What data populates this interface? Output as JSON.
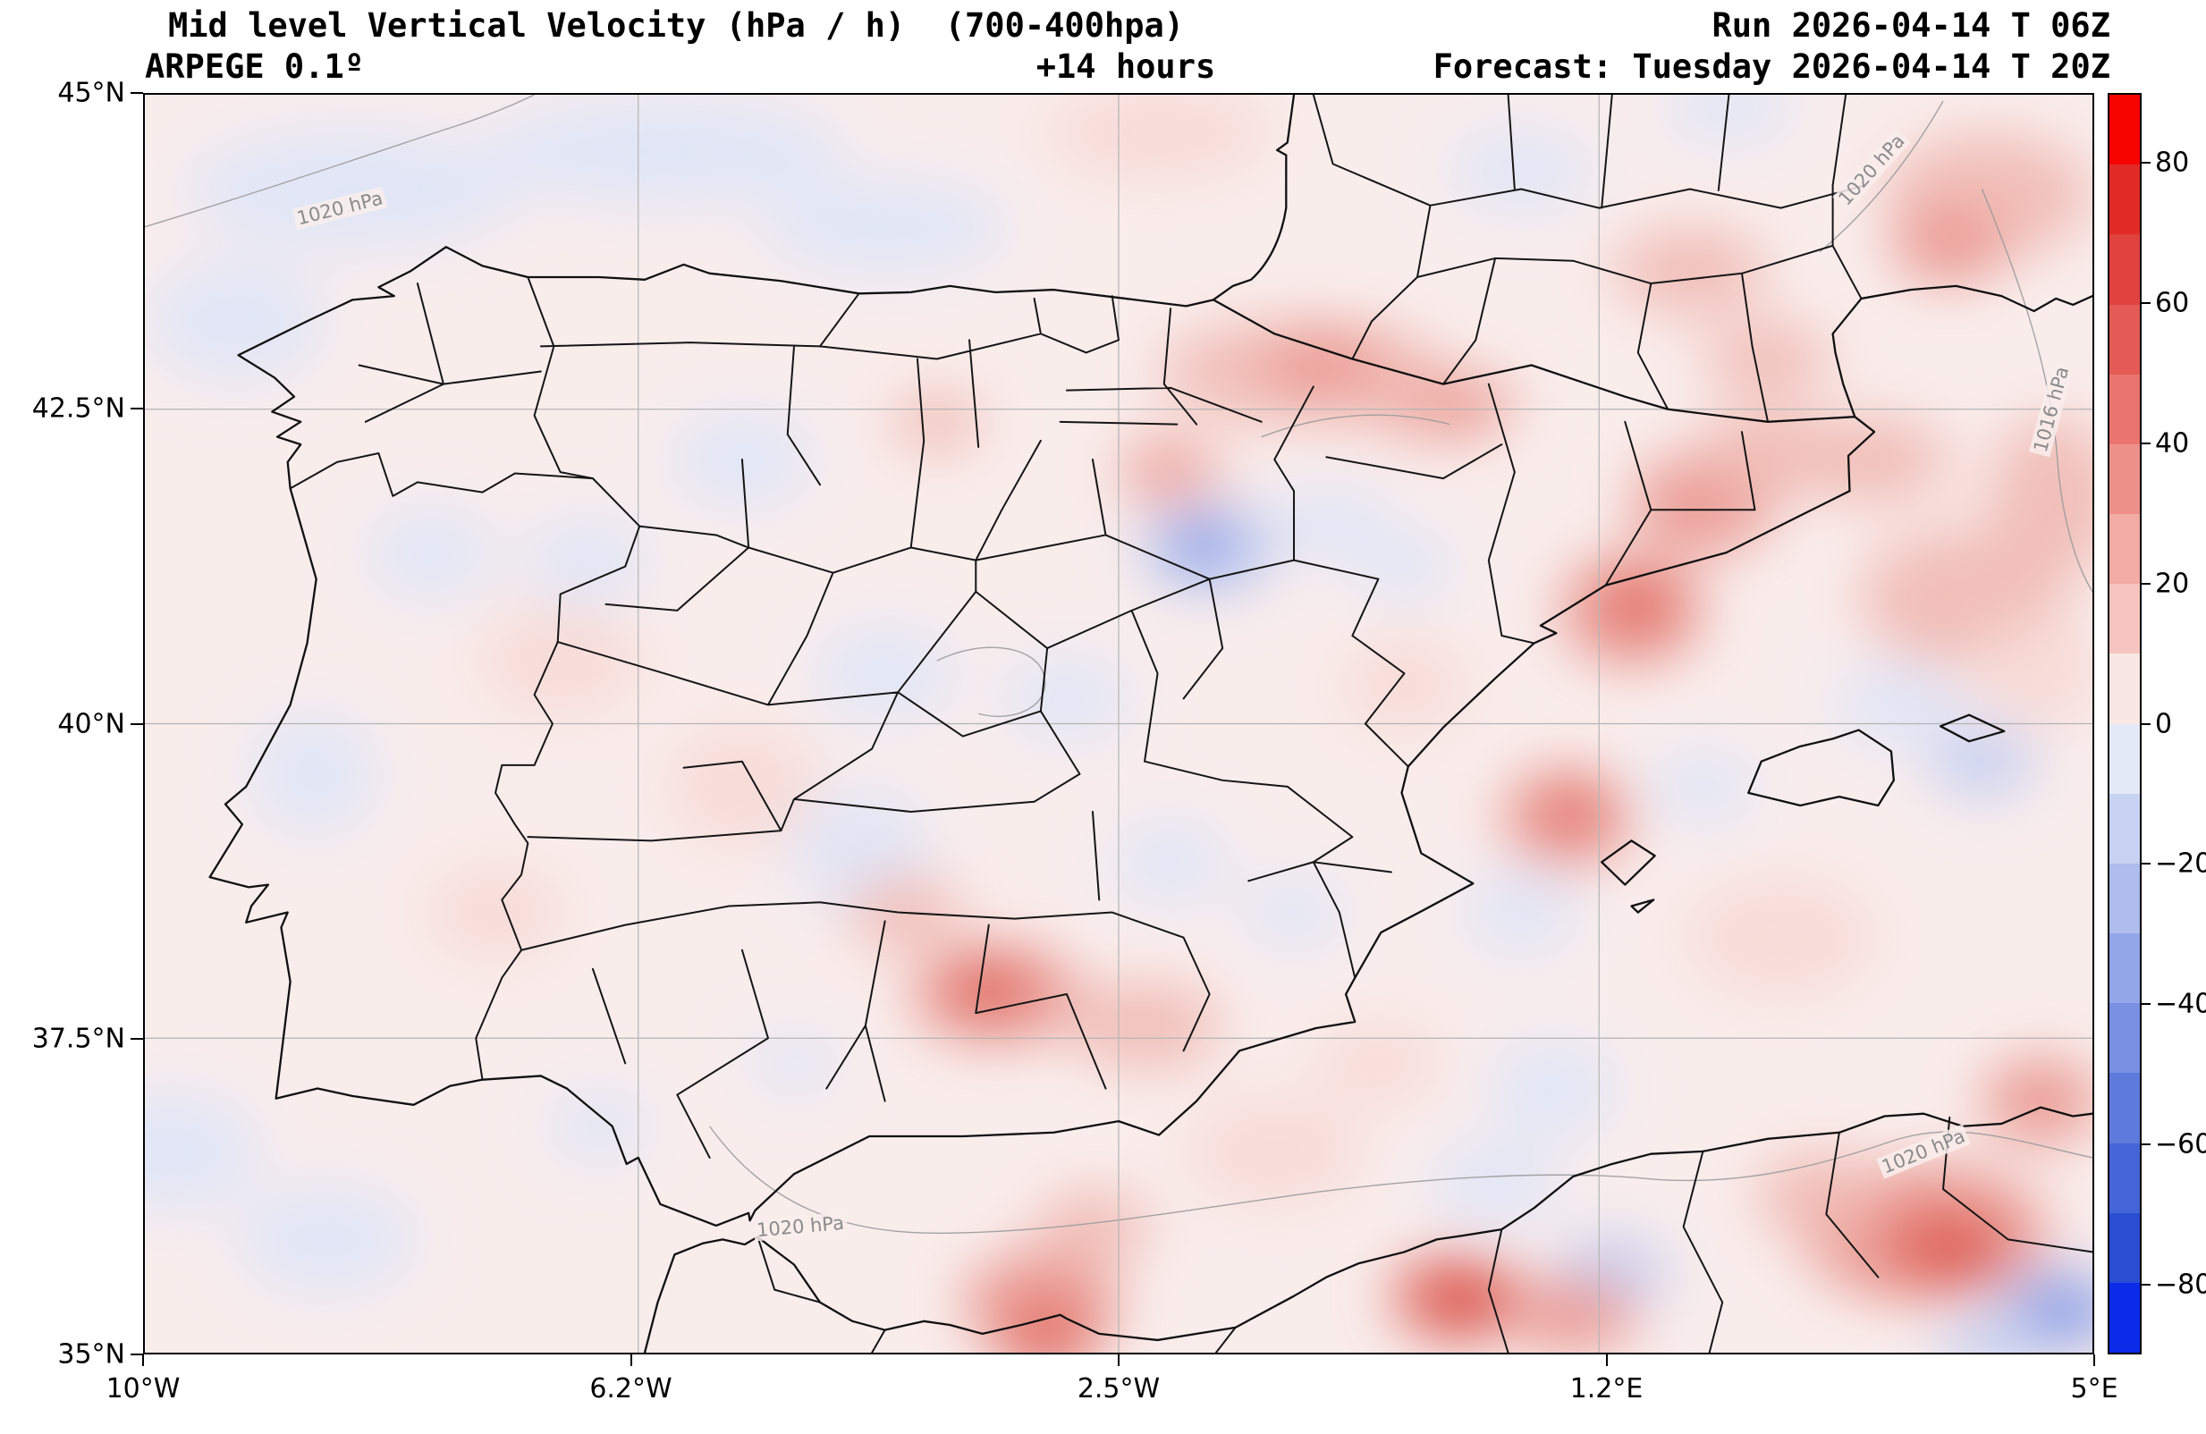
{
  "header": {
    "title": "Mid level Vertical Velocity (hPa / h)  (700-400hpa)",
    "model": "ARPEGE 0.1º",
    "lead": "+14 hours",
    "run": "Run 2026-04-14 T 06Z",
    "forecast": "Forecast: Tuesday 2026-04-14 T 20Z"
  },
  "axes": {
    "lat_ticks": [
      "45°N",
      "42.5°N",
      "40°N",
      "37.5°N",
      "35°N"
    ],
    "lon_ticks": [
      "10°W",
      "6.2°W",
      "2.5°W",
      "1.2°E",
      "5°E"
    ]
  },
  "contour_labels": [
    {
      "text": "1020 hPa",
      "lon": -8.5,
      "lat": 44.1,
      "rot": -14
    },
    {
      "text": "1020 hPa",
      "lon": 3.3,
      "lat": 44.4,
      "rot": -48
    },
    {
      "text": "1016 hPa",
      "lon": 4.68,
      "lat": 42.5,
      "rot": -75
    },
    {
      "text": "1020 hPa",
      "lon": -4.95,
      "lat": 36.0,
      "rot": -5
    },
    {
      "text": "1020 hPa",
      "lon": 3.7,
      "lat": 36.6,
      "rot": -22
    }
  ],
  "chart_data": {
    "type": "heatmap",
    "title": "Mid level Vertical Velocity (hPa / h) (700-400hpa)",
    "model": "ARPEGE 0.1º",
    "lead_time_hours": 14,
    "run": "2026-04-14 06Z",
    "valid": "Tuesday 2026-04-14 20Z",
    "region": "Iberian Peninsula",
    "x_axis": {
      "label": "longitude",
      "range": [
        -10,
        5
      ],
      "tick_values": [
        -10,
        -6.2,
        -2.5,
        1.2,
        5
      ],
      "tick_labels": [
        "10°W",
        "6.2°W",
        "2.5°W",
        "1.2°E",
        "5°E"
      ]
    },
    "y_axis": {
      "label": "latitude",
      "range": [
        35,
        45
      ],
      "tick_values": [
        45,
        42.5,
        40,
        37.5,
        35
      ],
      "tick_labels": [
        "45°N",
        "42.5°N",
        "40°N",
        "37.5°N",
        "35°N"
      ]
    },
    "grid": true,
    "legend": false,
    "colorbar": {
      "unit": "hPa / h",
      "range": [
        -90,
        90
      ],
      "level_step": 10,
      "ticks": [
        {
          "v": 80,
          "label": "80"
        },
        {
          "v": 60,
          "label": "60"
        },
        {
          "v": 40,
          "label": "40"
        },
        {
          "v": 20,
          "label": "20"
        },
        {
          "v": 0,
          "label": "0"
        },
        {
          "v": -20,
          "label": "−20"
        },
        {
          "v": -40,
          "label": "−40"
        },
        {
          "v": -60,
          "label": "−60"
        },
        {
          "v": -80,
          "label": "−80"
        }
      ],
      "colors_top_to_bottom": [
        "#f60400",
        "#e12b27",
        "#e0433e",
        "#e45b55",
        "#e9756e",
        "#ee908a",
        "#f2aba5",
        "#f6c5c0",
        "#f9e7e3",
        "#e4e9f8",
        "#c8d2f3",
        "#aebcee",
        "#93a6e8",
        "#7990e3",
        "#5f7add",
        "#4464d8",
        "#2a4ed2",
        "#0b2be8"
      ]
    },
    "isobars": [
      "1020 hPa",
      "1016 hPa"
    ],
    "background_value_color": "#f9edec",
    "palette": {
      "pb": "#dfe6f7",
      "lb": "#c4cff2",
      "mb": "#9cafea",
      "db": "#7e95e4",
      "pr": "#f7dad6",
      "lr": "#f1bab4",
      "mr": "#ea958d",
      "sr": "#e16b62",
      "cr": "#d5423a"
    },
    "blobs": [
      [
        -8.4,
        44.25,
        1.3,
        0.5,
        "pb"
      ],
      [
        -6.0,
        44.55,
        1.4,
        0.45,
        "pb"
      ],
      [
        -4.3,
        43.95,
        0.95,
        0.4,
        "pb"
      ],
      [
        -2.2,
        44.7,
        0.9,
        0.4,
        "pr"
      ],
      [
        0.6,
        44.4,
        0.55,
        0.35,
        "pb"
      ],
      [
        2.2,
        44.9,
        0.5,
        0.3,
        "pb"
      ],
      [
        -9.3,
        43.2,
        0.7,
        0.5,
        "pb"
      ],
      [
        -5.4,
        42.1,
        0.55,
        0.4,
        "pb"
      ],
      [
        -7.8,
        41.35,
        0.5,
        0.38,
        "pb"
      ],
      [
        -6.6,
        41.3,
        0.5,
        0.35,
        "pb"
      ],
      [
        -8.7,
        39.6,
        0.5,
        0.5,
        "pb"
      ],
      [
        -9.8,
        36.6,
        0.7,
        0.5,
        "pb"
      ],
      [
        -8.6,
        35.9,
        0.7,
        0.45,
        "pb"
      ],
      [
        -4.3,
        40.4,
        0.55,
        0.4,
        "pb"
      ],
      [
        -2.9,
        40.2,
        0.5,
        0.35,
        "pb"
      ],
      [
        -4.5,
        39.0,
        0.55,
        0.5,
        "pb"
      ],
      [
        -2.1,
        38.9,
        0.45,
        0.35,
        "pb"
      ],
      [
        -1.15,
        38.5,
        0.4,
        0.3,
        "pb"
      ],
      [
        0.6,
        38.5,
        0.45,
        0.35,
        "pb"
      ],
      [
        0.85,
        37.1,
        0.5,
        0.4,
        "pb"
      ],
      [
        0.4,
        36.35,
        0.5,
        0.35,
        "pb"
      ],
      [
        1.3,
        35.65,
        0.45,
        0.3,
        "lb"
      ],
      [
        4.75,
        35.35,
        0.45,
        0.32,
        "mb"
      ],
      [
        4.8,
        35.28,
        0.25,
        0.18,
        "db"
      ],
      [
        4.2,
        35.05,
        0.4,
        0.25,
        "lb"
      ],
      [
        4.15,
        39.7,
        0.42,
        0.3,
        "lb"
      ],
      [
        3.5,
        40.15,
        0.5,
        0.35,
        "pb"
      ],
      [
        2.0,
        39.5,
        0.42,
        0.3,
        "pb"
      ],
      [
        -1.8,
        41.4,
        0.55,
        0.38,
        "lb"
      ],
      [
        -1.85,
        41.42,
        0.27,
        0.2,
        "db"
      ],
      [
        -0.85,
        41.6,
        0.45,
        0.3,
        "pb"
      ],
      [
        -0.3,
        41.25,
        0.4,
        0.28,
        "pb"
      ],
      [
        -5.0,
        37.3,
        0.35,
        0.25,
        "pb"
      ],
      [
        -6.5,
        36.8,
        0.4,
        0.3,
        "pb"
      ],
      [
        -1.1,
        42.8,
        1.1,
        0.42,
        "lr"
      ],
      [
        -0.9,
        42.85,
        0.5,
        0.25,
        "mr"
      ],
      [
        -0.1,
        42.55,
        0.7,
        0.3,
        "lr"
      ],
      [
        0.1,
        42.5,
        0.35,
        0.2,
        "mr"
      ],
      [
        -2.1,
        42.0,
        0.42,
        0.3,
        "lr"
      ],
      [
        -2.15,
        42.05,
        0.22,
        0.16,
        "mr"
      ],
      [
        -3.9,
        42.4,
        0.35,
        0.25,
        "lr"
      ],
      [
        2.0,
        41.75,
        0.55,
        0.4,
        "mr"
      ],
      [
        2.5,
        42.15,
        0.55,
        0.35,
        "lr"
      ],
      [
        2.5,
        42.9,
        0.5,
        0.3,
        "lr"
      ],
      [
        1.45,
        40.9,
        0.55,
        0.45,
        "mr"
      ],
      [
        1.5,
        40.95,
        0.3,
        0.25,
        "sr"
      ],
      [
        0.95,
        39.25,
        0.5,
        0.4,
        "mr"
      ],
      [
        1.0,
        39.3,
        0.25,
        0.2,
        "sr"
      ],
      [
        -3.45,
        37.85,
        0.65,
        0.4,
        "mr"
      ],
      [
        -3.5,
        37.9,
        0.32,
        0.22,
        "sr"
      ],
      [
        -3.52,
        37.9,
        0.16,
        0.11,
        "cr"
      ],
      [
        -2.3,
        37.6,
        0.6,
        0.35,
        "lr"
      ],
      [
        -4.15,
        38.5,
        0.45,
        0.3,
        "lr"
      ],
      [
        -1.3,
        36.6,
        0.7,
        0.45,
        "pr"
      ],
      [
        -3.1,
        35.4,
        0.6,
        0.4,
        "mr"
      ],
      [
        -3.05,
        35.1,
        0.38,
        0.28,
        "sr"
      ],
      [
        -2.7,
        36.0,
        0.45,
        0.3,
        "lr"
      ],
      [
        0.1,
        35.45,
        0.5,
        0.35,
        "sr"
      ],
      [
        0.15,
        35.35,
        0.26,
        0.18,
        "cr"
      ],
      [
        1.0,
        35.3,
        0.5,
        0.3,
        "mr"
      ],
      [
        3.7,
        35.95,
        0.95,
        0.55,
        "mr"
      ],
      [
        3.85,
        35.85,
        0.5,
        0.3,
        "sr"
      ],
      [
        3.95,
        35.75,
        0.24,
        0.16,
        "cr"
      ],
      [
        2.9,
        36.25,
        0.5,
        0.35,
        "lr"
      ],
      [
        4.6,
        37.0,
        0.45,
        0.35,
        "mr"
      ],
      [
        4.0,
        41.0,
        0.8,
        0.55,
        "lr"
      ],
      [
        3.3,
        42.1,
        0.6,
        0.35,
        "lr"
      ],
      [
        4.2,
        44.2,
        0.8,
        0.5,
        "lr"
      ],
      [
        3.9,
        43.8,
        0.45,
        0.3,
        "mr"
      ],
      [
        1.9,
        43.6,
        0.6,
        0.35,
        "lr"
      ],
      [
        4.7,
        41.8,
        0.5,
        0.65,
        "lr"
      ],
      [
        -6.8,
        40.5,
        0.65,
        0.45,
        "pr"
      ],
      [
        -5.4,
        39.5,
        0.6,
        0.5,
        "pr"
      ],
      [
        -7.3,
        38.5,
        0.55,
        0.4,
        "pr"
      ],
      [
        -0.3,
        40.3,
        0.5,
        0.4,
        "pr"
      ],
      [
        -0.5,
        37.3,
        0.5,
        0.35,
        "pr"
      ],
      [
        2.6,
        38.3,
        0.75,
        0.5,
        "pr"
      ],
      [
        4.6,
        40.4,
        0.5,
        0.45,
        "pr"
      ]
    ],
    "notable_features": [
      {
        "sign": "positive",
        "lon": -0.9,
        "lat": 42.85,
        "approx_value": 30,
        "note": "red band along Pyrenees / Ebro"
      },
      {
        "sign": "positive",
        "lon": 1.5,
        "lat": 41.0,
        "approx_value": 25,
        "note": "Catalonia coastal maximum"
      },
      {
        "sign": "positive",
        "lon": -3.5,
        "lat": 37.9,
        "approx_value": 45,
        "note": "Granada maximum"
      },
      {
        "sign": "positive",
        "lon": 3.9,
        "lat": 35.8,
        "approx_value": 45,
        "note": "NE Algeria maximum"
      },
      {
        "sign": "negative",
        "lon": -1.85,
        "lat": 41.4,
        "approx_value": -25,
        "note": "blue minimum near Zaragoza"
      },
      {
        "sign": "negative",
        "lon": 4.8,
        "lat": 35.3,
        "approx_value": -30,
        "note": "blue minimum bottom right"
      }
    ]
  }
}
